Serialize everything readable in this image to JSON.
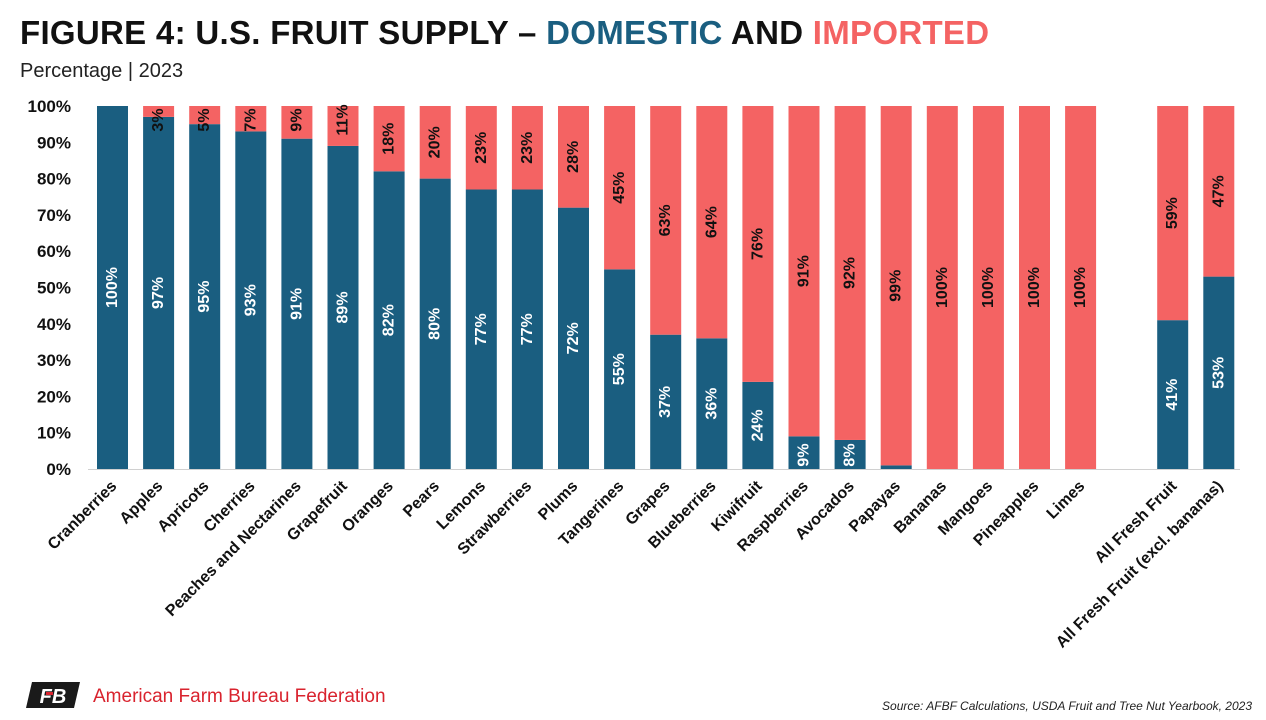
{
  "header": {
    "title_prefix": "FIGURE 4: U.S. FRUIT SUPPLY – ",
    "title_domestic": "DOMESTIC",
    "title_and": " AND ",
    "title_imported": "IMPORTED",
    "subtitle": "Percentage | 2023"
  },
  "footer": {
    "org_name": "American Farm Bureau Federation",
    "org_mark": "FB",
    "source": "Source: AFBF Calculations, USDA Fruit and Tree Nut Yearbook, 2023"
  },
  "colors": {
    "domestic": "#1a5e80",
    "imported": "#f46363"
  },
  "chart_data": {
    "type": "bar",
    "stacked": true,
    "title": "FIGURE 4: U.S. FRUIT SUPPLY – DOMESTIC AND IMPORTED",
    "subtitle": "Percentage | 2023",
    "xlabel": "",
    "ylabel": "",
    "ylim": [
      0,
      100
    ],
    "yticks": [
      "0%",
      "10%",
      "20%",
      "30%",
      "40%",
      "50%",
      "60%",
      "70%",
      "80%",
      "90%",
      "100%"
    ],
    "categories": [
      "Cranberries",
      "Apples",
      "Apricots",
      "Cherries",
      "Peaches and Nectarines",
      "Grapefruit",
      "Oranges",
      "Pears",
      "Lemons",
      "Strawberries",
      "Plums",
      "Tangerines",
      "Grapes",
      "Blueberries",
      "Kiwifruit",
      "Raspberries",
      "Avocados",
      "Papayas",
      "Bananas",
      "Mangoes",
      "Pineapples",
      "Limes",
      "All Fresh Fruit",
      "All Fresh Fruit (excl. bananas)"
    ],
    "series": [
      {
        "name": "Domestic",
        "values": [
          100,
          97,
          95,
          93,
          91,
          89,
          82,
          80,
          77,
          77,
          72,
          55,
          37,
          36,
          24,
          9,
          8,
          1,
          0,
          0,
          0,
          0,
          41,
          53
        ],
        "labels": [
          "100%",
          "97%",
          "95%",
          "93%",
          "91%",
          "89%",
          "82%",
          "80%",
          "77%",
          "77%",
          "72%",
          "55%",
          "37%",
          "36%",
          "24%",
          "9%",
          "8%",
          "",
          "",
          "",
          "",
          "",
          "41%",
          "53%"
        ]
      },
      {
        "name": "Imported",
        "values": [
          0,
          3,
          5,
          7,
          9,
          11,
          18,
          20,
          23,
          23,
          28,
          45,
          63,
          64,
          76,
          91,
          92,
          99,
          100,
          100,
          100,
          100,
          59,
          47
        ],
        "labels": [
          "",
          "3%",
          "5%",
          "7%",
          "9%",
          "11%",
          "18%",
          "20%",
          "23%",
          "23%",
          "28%",
          "45%",
          "63%",
          "64%",
          "76%",
          "91%",
          "92%",
          "99%",
          "100%",
          "100%",
          "100%",
          "100%",
          "59%",
          "47%"
        ]
      }
    ]
  }
}
